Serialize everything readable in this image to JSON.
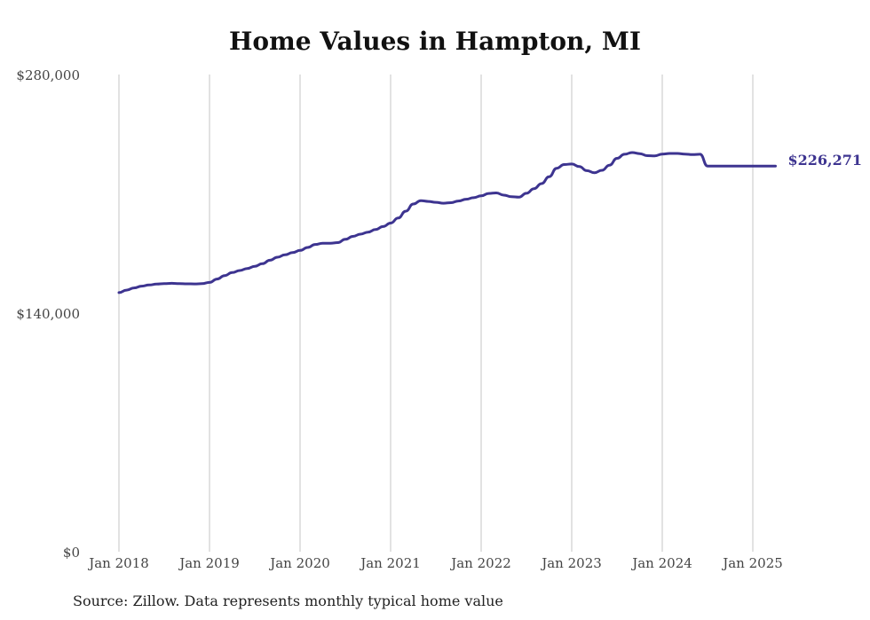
{
  "title": "Home Values in Hampton, MI",
  "source": "Source: Zillow. Data represents monthly typical home value",
  "colors": {
    "line": "#3d3490",
    "grid": "#c4c4c4",
    "text": "#444444"
  },
  "chart_data": {
    "type": "line",
    "title": "Home Values in Hampton, MI",
    "xlabel": "",
    "ylabel": "",
    "ylim": [
      0,
      280000
    ],
    "y_ticks": [
      0,
      140000,
      280000
    ],
    "y_tick_labels": [
      "$0",
      "$140,000",
      "$280,000"
    ],
    "x_ticks": [
      "2018-01",
      "2019-01",
      "2020-01",
      "2021-01",
      "2022-01",
      "2023-01",
      "2024-01",
      "2025-01"
    ],
    "x_tick_labels": [
      "Jan 2018",
      "Jan 2019",
      "Jan 2020",
      "Jan 2021",
      "Jan 2022",
      "Jan 2023",
      "Jan 2024",
      "Jan 2025"
    ],
    "grid": "vertical gridlines at January of each year",
    "end_label": "$226,271",
    "series": [
      {
        "x": [
          "2018-01",
          "2018-02",
          "2018-03",
          "2018-04",
          "2018-05",
          "2018-06",
          "2018-07",
          "2018-08",
          "2018-09",
          "2018-10",
          "2018-11",
          "2018-12",
          "2019-01",
          "2019-02",
          "2019-03",
          "2019-04",
          "2019-05",
          "2019-06",
          "2019-07",
          "2019-08",
          "2019-09",
          "2019-10",
          "2019-11",
          "2019-12",
          "2020-01",
          "2020-02",
          "2020-03",
          "2020-04",
          "2020-05",
          "2020-06",
          "2020-07",
          "2020-08",
          "2020-09",
          "2020-10",
          "2020-11",
          "2020-12",
          "2021-01",
          "2021-02",
          "2021-03",
          "2021-04",
          "2021-05",
          "2021-06",
          "2021-07",
          "2021-08",
          "2021-09",
          "2021-10",
          "2021-11",
          "2021-12",
          "2022-01",
          "2022-02",
          "2022-03",
          "2022-04",
          "2022-05",
          "2022-06",
          "2022-07",
          "2022-08",
          "2022-09",
          "2022-10",
          "2022-11",
          "2022-12",
          "2023-01",
          "2023-02",
          "2023-03",
          "2023-04",
          "2023-05",
          "2023-06",
          "2023-07",
          "2023-08",
          "2023-09",
          "2023-10",
          "2023-11",
          "2023-12",
          "2024-01",
          "2024-02",
          "2024-03",
          "2024-04",
          "2024-05",
          "2024-06",
          "2024-07",
          "2024-08",
          "2024-09",
          "2024-10",
          "2024-11",
          "2024-12",
          "2025-01",
          "2025-02",
          "2025-03",
          "2025-04"
        ],
        "values": [
          152000,
          153500,
          154800,
          155800,
          156500,
          157000,
          157300,
          157500,
          157300,
          157200,
          157100,
          157300,
          158000,
          160000,
          162000,
          163800,
          165000,
          166200,
          167500,
          169000,
          171000,
          172800,
          174200,
          175500,
          176800,
          178500,
          180300,
          181000,
          181000,
          181400,
          183300,
          185000,
          186300,
          187500,
          189000,
          190800,
          192800,
          195800,
          199800,
          204000,
          206000,
          205500,
          205000,
          204500,
          204800,
          205800,
          206800,
          207700,
          208800,
          210200,
          210500,
          209200,
          208300,
          208000,
          210300,
          213000,
          216000,
          220000,
          225000,
          227200,
          227500,
          226000,
          223600,
          222400,
          223800,
          226800,
          230800,
          233200,
          234200,
          233600,
          232400,
          232300,
          233300,
          233700,
          233700,
          233300,
          233000,
          233200,
          226271,
          226271,
          226271,
          226271,
          226271,
          226271,
          226271,
          226271,
          226271,
          226271
        ]
      }
    ]
  }
}
